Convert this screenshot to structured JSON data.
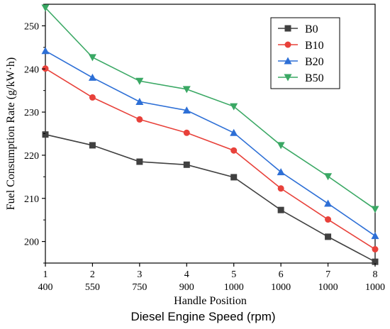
{
  "chart_data": {
    "type": "line",
    "xlabel": "Handle Position",
    "secondary_xlabel": "Diesel Engine Speed (rpm)",
    "ylabel": "Fuel Consumption Rate (g/kW·h)",
    "x": [
      1,
      2,
      3,
      4,
      5,
      6,
      7,
      8
    ],
    "x_tick_labels": [
      "1",
      "2",
      "3",
      "4",
      "5",
      "6",
      "7",
      "8"
    ],
    "secondary_x_tick_labels": [
      "400",
      "550",
      "750",
      "900",
      "1000",
      "1000",
      "1000",
      "1000"
    ],
    "y_ticks": [
      200,
      210,
      220,
      230,
      240,
      250
    ],
    "y_tick_labels": [
      "200",
      "210",
      "220",
      "230",
      "240",
      "250"
    ],
    "xlim": [
      1,
      8
    ],
    "ylim": [
      195,
      255
    ],
    "grid": false,
    "legend_position": "top-right",
    "series": [
      {
        "name": "B0",
        "color": "#404040",
        "marker": "square",
        "values": [
          224.8,
          222.3,
          218.5,
          217.8,
          214.9,
          207.3,
          201.1,
          195.3
        ]
      },
      {
        "name": "B10",
        "color": "#e8413a",
        "marker": "circle",
        "values": [
          240.1,
          233.4,
          228.3,
          225.2,
          221.1,
          212.3,
          205.1,
          198.2
        ]
      },
      {
        "name": "B20",
        "color": "#2d6fd6",
        "marker": "triangle-up",
        "values": [
          244.2,
          238.0,
          232.4,
          230.4,
          225.2,
          216.1,
          208.8,
          201.3
        ]
      },
      {
        "name": "B50",
        "color": "#3aa864",
        "marker": "triangle-down",
        "values": [
          254.2,
          242.7,
          237.2,
          235.3,
          231.3,
          222.3,
          215.1,
          207.5
        ]
      }
    ]
  }
}
